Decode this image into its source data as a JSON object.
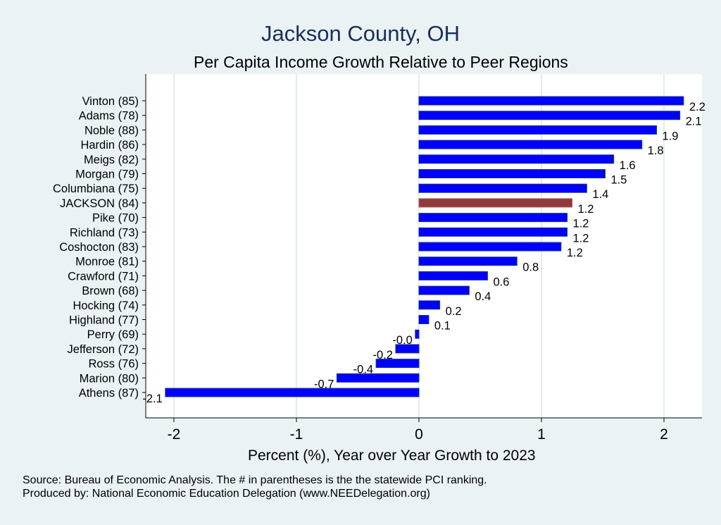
{
  "chart_data": {
    "type": "bar",
    "orientation": "horizontal",
    "title": "Jackson County, OH",
    "subtitle": "Per Capita Income Growth Relative to Peer Regions",
    "xlabel": "Percent (%), Year over Year Growth to 2023",
    "xlim": [
      -2.2,
      2.3
    ],
    "xticks": [
      -2,
      -1,
      0,
      1,
      2
    ],
    "grid": true,
    "colors": {
      "peer": "#0000ff",
      "highlight": "#8f3a3c",
      "background": "#eaf2f3",
      "plot": "#ffffff"
    },
    "categories": [
      "Vinton (85)",
      "Adams (78)",
      "Noble (88)",
      "Hardin (86)",
      "Meigs (82)",
      "Morgan (79)",
      "Columbiana (75)",
      "JACKSON (84)",
      "Pike (70)",
      "Richland (73)",
      "Coshocton (83)",
      "Monroe (81)",
      "Crawford (71)",
      "Brown (68)",
      "Hocking (74)",
      "Highland (77)",
      "Perry (69)",
      "Jefferson (72)",
      "Ross (76)",
      "Marion (80)",
      "Athens (87)"
    ],
    "values": [
      2.16,
      2.13,
      1.94,
      1.82,
      1.59,
      1.52,
      1.37,
      1.25,
      1.21,
      1.21,
      1.16,
      0.8,
      0.56,
      0.41,
      0.17,
      0.08,
      -0.03,
      -0.19,
      -0.35,
      -0.67,
      -2.07
    ],
    "labels": [
      "2.2",
      "2.1",
      "1.9",
      "1.8",
      "1.6",
      "1.5",
      "1.4",
      "1.2",
      "1.2",
      "1.2",
      "1.2",
      "0.8",
      "0.6",
      "0.4",
      "0.2",
      "0.1",
      "-0.0",
      "-0.2",
      "-0.4",
      "-0.7",
      "-2.1"
    ],
    "highlight": "JACKSON (84)"
  },
  "notes": [
    "Source: Bureau of Economic Analysis. The # in parentheses is the the statewide PCI ranking.",
    "Produced by: National Economic Education Delegation (www.NEEDelegation.org)"
  ]
}
